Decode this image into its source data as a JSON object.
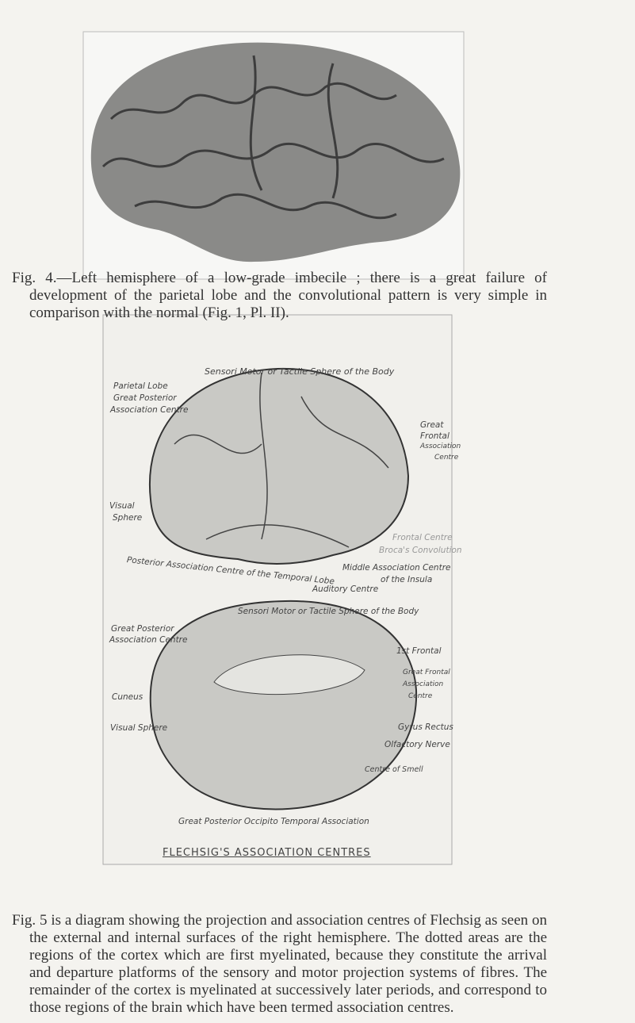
{
  "figure4": {
    "caption": "Fig. 4.—Left hemisphere of a low-grade imbecile ; there is a great failure of development of the parietal lobe and the convolutional pattern is very simple in comparison with the normal (Fig. 1, Pl. II)."
  },
  "figure5": {
    "lateral_labels": [
      "Sensori Motor or Tactile Sphere of the Body",
      "Parietal Lobe",
      "Great Posterior",
      "Association Centre",
      "Great",
      "Frontal",
      "Association",
      "Centre",
      "Visual",
      "Sphere",
      "Frontal Centre",
      "Broca's Convolution",
      "Posterior Association Centre of the Temporal Lobe",
      "Middle Association Centre",
      "of the Insula",
      "Auditory Centre"
    ],
    "medial_labels": [
      "Sensori Motor or Tactile Sphere of the Body",
      "Great Posterior",
      "Association Centre",
      "1st Frontal",
      "Great Frontal",
      "Association",
      "Centre",
      "Cuneus",
      "Visual Sphere",
      "Gyrus Rectus",
      "Olfactory Nerve",
      "Centre of Smell",
      "Great Posterior Occipito Temporal Association"
    ],
    "title": "FLECHSIG'S ASSOCIATION CENTRES"
  },
  "body": {
    "paragraph": "Fig. 5 is a diagram showing the projection and association centres of Flechsig as seen on the external and internal surfaces of the right hemisphere. The dotted areas are the regions of the cortex which are first myelinated, because they constitute the arrival and departure platforms of the sensory and motor projection systems of fibres. The remainder of the cortex is myelinated at successively later periods, and correspond to those regions of the brain which have been termed association centres."
  }
}
